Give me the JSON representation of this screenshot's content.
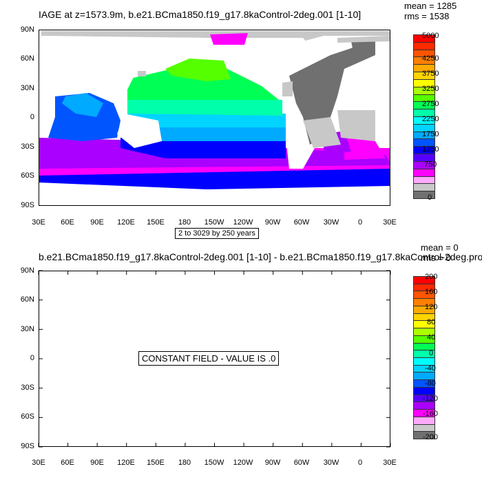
{
  "panel1": {
    "title": "IAGE at z=1573.9m, b.e21.BCma1850.f19_g17.8kaControl-2deg.001 [1-10]",
    "mean": "mean = 1285",
    "rms": "rms = 1538",
    "note": "2 to 3029 by 250 years",
    "colorbar_labels": [
      "5000",
      "4250",
      "3750",
      "3250",
      "2750",
      "2250",
      "1750",
      "1250",
      "750",
      "0"
    ]
  },
  "panel2": {
    "title": "b.e21.BCma1850.f19_g17.8kaControl-2deg.001 [1-10] - b.e21.BCma1850.f19_g17.8kaControl-2deg.pro",
    "mean": "mean = 0",
    "rms": "rms = 0",
    "constant_msg": "CONSTANT FIELD - VALUE IS .0",
    "colorbar_labels": [
      "200",
      "160",
      "120",
      "80",
      "40",
      "0",
      "-40",
      "-80",
      "-120",
      "-160",
      "-200"
    ]
  },
  "axes": {
    "y_ticks": [
      "90N",
      "60N",
      "30N",
      "0",
      "30S",
      "60S",
      "90S"
    ],
    "x_ticks": [
      "30E",
      "60E",
      "90E",
      "120E",
      "150E",
      "180",
      "150W",
      "120W",
      "90W",
      "60W",
      "30W",
      "0",
      "30E"
    ]
  },
  "colors": {
    "palette": [
      "#ff0000",
      "#ff2a00",
      "#ff5500",
      "#ff7f00",
      "#ffaa00",
      "#ffd400",
      "#ffff00",
      "#aaff00",
      "#55ff00",
      "#00ff55",
      "#00ffaa",
      "#00ffff",
      "#00d4ff",
      "#00aaff",
      "#0055ff",
      "#0000ff",
      "#5500ff",
      "#aa00ff",
      "#ff00ff",
      "#ffaaff",
      "#c8c8c8",
      "#707070"
    ],
    "land": "#707070",
    "missing": "#c8c8c8"
  },
  "chart_data": [
    {
      "type": "heatmap",
      "title": "IAGE at z=1573.9m, b.e21.BCma1850.f19_g17.8kaControl-2deg.001 [1-10]",
      "projection": "cylindrical equidistant, centered on 180",
      "lon_range": [
        "30E",
        "30E"
      ],
      "lat_range": [
        "90S",
        "90N"
      ],
      "contour_levels": [
        0,
        250,
        500,
        750,
        1000,
        1250,
        1500,
        1750,
        2000,
        2250,
        2500,
        2750,
        3000,
        3250,
        3500,
        3750,
        4000,
        4250,
        4500,
        4750,
        5000
      ],
      "stats": {
        "mean": 1285,
        "rms": 1538
      },
      "range_note": "2 to 3029 by 250 years"
    },
    {
      "type": "heatmap",
      "title": "b.e21.BCma1850.f19_g17.8kaControl-2deg.001 [1-10] - b.e21.BCma1850.f19_g17.8kaControl-2deg.pro",
      "contour_levels": [
        -200,
        -180,
        -160,
        -140,
        -120,
        -100,
        -80,
        -60,
        -40,
        -20,
        0,
        20,
        40,
        60,
        80,
        100,
        120,
        140,
        160,
        180,
        200
      ],
      "stats": {
        "mean": 0,
        "rms": 0
      },
      "constant_value": 0
    }
  ]
}
